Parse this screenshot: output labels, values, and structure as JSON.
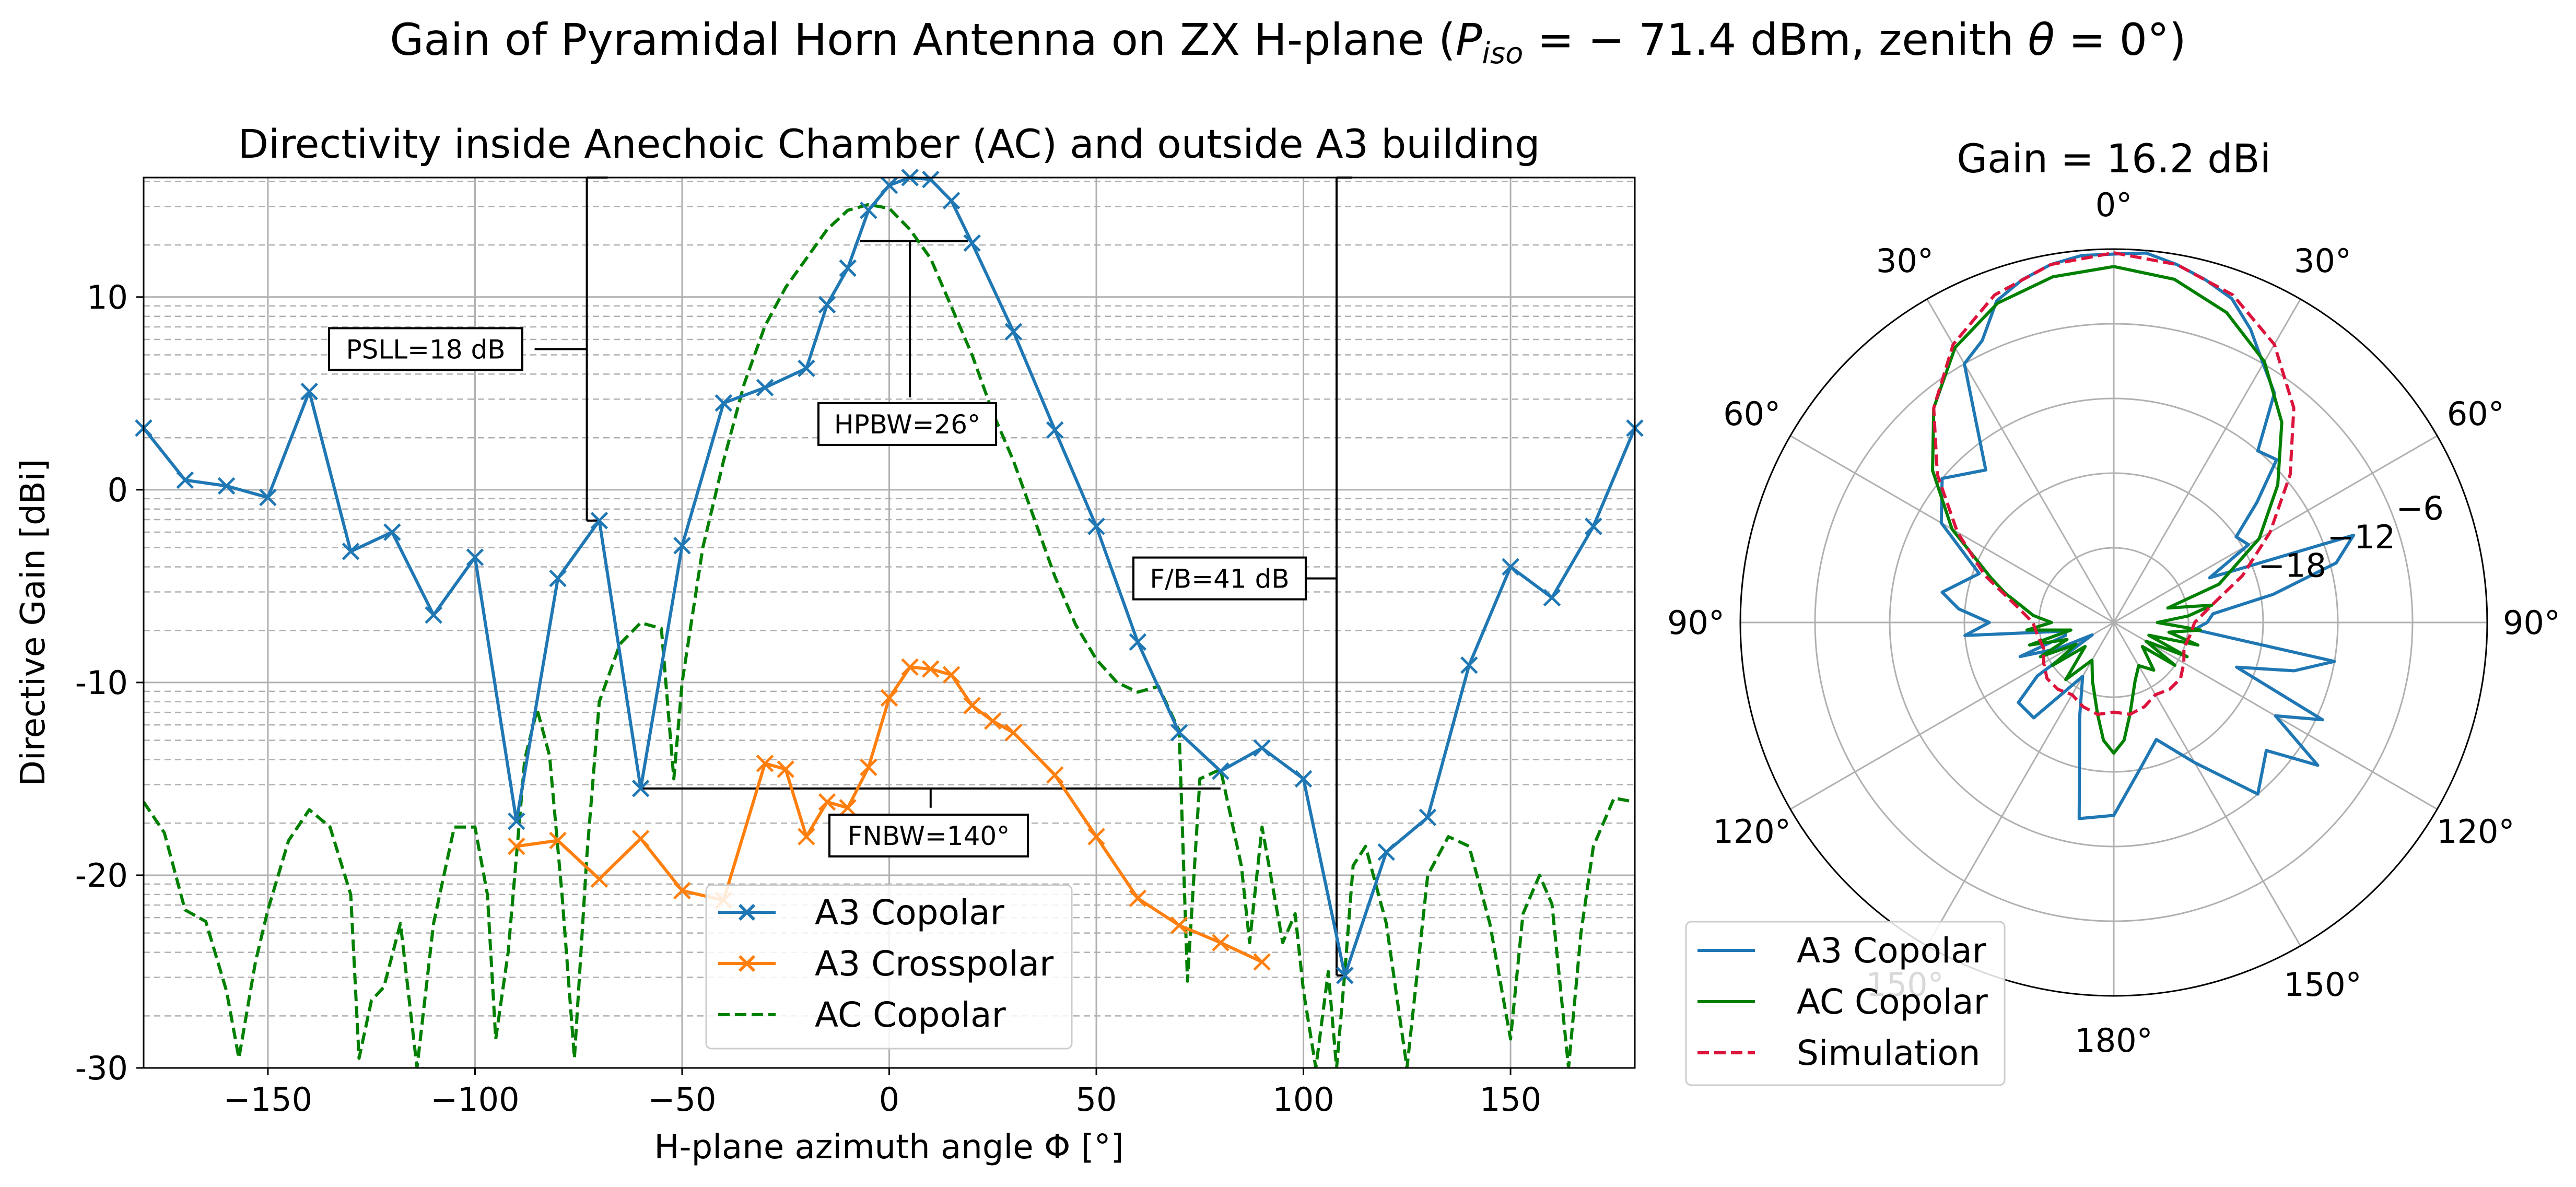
{
  "figure": {
    "title_prefix": "Gain of Pyramidal Horn Antenna on ZX H-plane (",
    "title_p": "P",
    "title_p_sub": "iso",
    "title_mid": " = − 71.4 dBm, zenith ",
    "title_theta": "θ",
    "title_suffix": " = 0°)"
  },
  "chart_data": [
    {
      "type": "line",
      "title": "Directivity inside Anechoic Chamber (AC) and outside A3 building",
      "xlabel": "H-plane azimuth angle Φ [°]",
      "ylabel": "Directive Gain [dBi]",
      "xlim": [
        -180,
        180
      ],
      "ylim": [
        -30,
        16.2
      ],
      "xticks": [
        -150,
        -100,
        -50,
        0,
        50,
        100,
        150
      ],
      "xtick_labels": [
        "−150",
        "−100",
        "−50",
        "0",
        "50",
        "100",
        "150"
      ],
      "yticks": [
        -30,
        -20,
        -10,
        0,
        10
      ],
      "ytick_labels": [
        "-30",
        "-20",
        "-10",
        "0",
        "10"
      ],
      "grid": true,
      "legend_position": "lower center",
      "series": [
        {
          "name": "A3 Copolar",
          "color": "#1f77b4",
          "style": "solid",
          "marker": "x",
          "x": [
            -180,
            -170,
            -160,
            -150,
            -140,
            -130,
            -120,
            -110,
            -100,
            -90,
            -80,
            -70,
            -60,
            -50,
            -40,
            -30,
            -20,
            -15,
            -10,
            -5,
            0,
            5,
            10,
            15,
            20,
            30,
            40,
            50,
            60,
            70,
            80,
            90,
            100,
            110,
            120,
            130,
            140,
            150,
            160,
            170,
            180
          ],
          "y": [
            3.2,
            0.5,
            0.2,
            -0.4,
            5.1,
            -3.2,
            -2.2,
            -6.5,
            -3.5,
            -17.2,
            -4.6,
            -1.6,
            -15.5,
            -2.9,
            4.5,
            5.3,
            6.3,
            9.6,
            11.5,
            14.5,
            15.8,
            16.2,
            16.1,
            15.0,
            12.8,
            8.2,
            3.1,
            -1.9,
            -7.9,
            -12.6,
            -14.6,
            -13.4,
            -15.0,
            -25.2,
            -18.8,
            -17.0,
            -9.1,
            -4.0,
            -5.6,
            -1.9,
            3.2
          ]
        },
        {
          "name": "A3 Crosspolar",
          "color": "#ff7f0e",
          "style": "solid",
          "marker": "x",
          "x": [
            -90,
            -80,
            -70,
            -60,
            -50,
            -40,
            -30,
            -25,
            -20,
            -15,
            -10,
            -5,
            0,
            5,
            10,
            15,
            20,
            25,
            30,
            40,
            50,
            60,
            70,
            80,
            90
          ],
          "y": [
            -18.5,
            -18.2,
            -20.2,
            -18.1,
            -20.8,
            -21.3,
            -14.2,
            -14.5,
            -18.0,
            -16.2,
            -16.5,
            -14.4,
            -10.8,
            -9.2,
            -9.3,
            -9.6,
            -11.2,
            -12.0,
            -12.6,
            -14.8,
            -18.0,
            -21.2,
            -22.6,
            -23.5,
            -24.5
          ]
        },
        {
          "name": "AC Copolar",
          "color": "#008000",
          "style": "dashed",
          "marker": "none",
          "x": [
            -180,
            -175,
            -170,
            -165,
            -160,
            -157,
            -153,
            -150,
            -145,
            -140,
            -135,
            -130,
            -128,
            -125,
            -122,
            -118,
            -114,
            -110,
            -105,
            -100,
            -97,
            -95,
            -92,
            -90,
            -88,
            -85,
            -82,
            -79,
            -76,
            -73,
            -70,
            -65,
            -60,
            -55,
            -52,
            -50,
            -45,
            -40,
            -35,
            -30,
            -25,
            -20,
            -15,
            -10,
            -5,
            0,
            5,
            10,
            15,
            20,
            25,
            30,
            35,
            40,
            45,
            50,
            55,
            60,
            65,
            70,
            72,
            75,
            80,
            85,
            87,
            90,
            95,
            98,
            100,
            103,
            106,
            108,
            110,
            112,
            115,
            120,
            125,
            130,
            135,
            140,
            145,
            150,
            153,
            157,
            160,
            164,
            167,
            170,
            175,
            180
          ],
          "y": [
            -16.2,
            -17.8,
            -21.8,
            -22.4,
            -26.0,
            -29.5,
            -24.5,
            -21.8,
            -18.2,
            -16.6,
            -17.5,
            -21.0,
            -29.5,
            -26.5,
            -25.8,
            -22.5,
            -30.0,
            -22.5,
            -17.5,
            -17.5,
            -21.0,
            -28.5,
            -24.0,
            -19.0,
            -14.0,
            -11.4,
            -13.8,
            -21.0,
            -29.5,
            -19.0,
            -11.0,
            -8.0,
            -6.9,
            -7.2,
            -15.0,
            -10.0,
            -3.0,
            1.5,
            5.5,
            8.5,
            10.5,
            12.0,
            13.5,
            14.5,
            14.8,
            14.6,
            13.5,
            12.0,
            9.5,
            7.0,
            4.0,
            1.5,
            -1.5,
            -4.5,
            -7.0,
            -8.8,
            -10.0,
            -10.5,
            -10.2,
            -12.5,
            -25.5,
            -15.0,
            -14.5,
            -19.5,
            -23.5,
            -17.5,
            -23.5,
            -22.0,
            -26.0,
            -30.0,
            -25.0,
            -30.0,
            -25.0,
            -19.5,
            -18.5,
            -22.5,
            -30.0,
            -20.0,
            -18.0,
            -18.5,
            -22.5,
            -28.5,
            -22.0,
            -20.0,
            -21.5,
            -30.0,
            -23.0,
            -18.5,
            -16.0,
            -16.2
          ]
        }
      ],
      "annotations": [
        {
          "label": "PSLL=18 dB",
          "y_top": 16.2,
          "y_bottom": -1.6
        },
        {
          "label": "HPBW=26°",
          "x_left": -7,
          "x_right": 19,
          "level": 12.9
        },
        {
          "label": "FNBW=140°",
          "x_left": -60,
          "x_right": 80,
          "level": -15.5
        },
        {
          "label": "F/B=41 dB",
          "y_top": 16.2,
          "y_bottom": -25.2
        }
      ]
    },
    {
      "type": "polar",
      "title": "Gain = 16.2 dBi",
      "theta_zero": "top",
      "theta_direction": "clockwise",
      "r_range_db": [
        -30,
        0
      ],
      "rtick_labels": [
        "−6",
        "−12",
        "−18"
      ],
      "angle_labels": [
        "0°",
        "30°",
        "60°",
        "90°",
        "120°",
        "150°",
        "180°",
        "150°",
        "120°",
        "90°",
        "60°",
        "30°"
      ],
      "legend_position": "lower left",
      "series": [
        {
          "name": "A3 Copolar",
          "color": "#1f77b4",
          "style": "solid",
          "angle": [
            0,
            5,
            10,
            15,
            20,
            25,
            30,
            35,
            40,
            45,
            50,
            55,
            60,
            65,
            70,
            75,
            80,
            85,
            90,
            95,
            100,
            105,
            110,
            115,
            120,
            125,
            130,
            140,
            150,
            160,
            170,
            180,
            190,
            200,
            210,
            220,
            230,
            235,
            240,
            245,
            250,
            255,
            260,
            265,
            270,
            275,
            280,
            290,
            300,
            310,
            320,
            330,
            335,
            340,
            345,
            350,
            355,
            360
          ],
          "r_db": [
            -0.4,
            -0.2,
            -0.8,
            -1.5,
            -2.3,
            -4.0,
            -6.0,
            -7.5,
            -12.0,
            -11.5,
            -15.0,
            -18.0,
            -17.5,
            -21.5,
            -9.5,
            -11.5,
            -17.0,
            -22.0,
            -22.5,
            -23.5,
            -12.0,
            -15.0,
            -19.5,
            -11.5,
            -15.0,
            -10.0,
            -14.0,
            -12.0,
            -17.0,
            -20.0,
            -18.0,
            -14.5,
            -14.0,
            -22.0,
            -25.0,
            -20.0,
            -20.0,
            -22.5,
            -28.0,
            -25.0,
            -22.0,
            -26.0,
            -26.0,
            -18.0,
            -20.0,
            -17.5,
            -16.0,
            -18.5,
            -14.0,
            -12.0,
            -14.0,
            -6.0,
            -5.0,
            -2.5,
            -1.5,
            -0.8,
            -0.4,
            -0.4
          ]
        },
        {
          "name": "AC Copolar",
          "color": "#008000",
          "style": "solid",
          "angle": [
            0,
            10,
            20,
            30,
            40,
            50,
            60,
            70,
            75,
            80,
            85,
            90,
            95,
            100,
            105,
            110,
            115,
            120,
            125,
            130,
            140,
            150,
            160,
            170,
            175,
            180,
            185,
            190,
            200,
            210,
            220,
            230,
            235,
            240,
            245,
            250,
            255,
            260,
            265,
            270,
            275,
            280,
            285,
            290,
            300,
            310,
            320,
            330,
            340,
            350,
            360
          ],
          "r_db": [
            -1.4,
            -2.0,
            -3.5,
            -5.8,
            -9.0,
            -12.8,
            -16.5,
            -21.0,
            -25.5,
            -22.0,
            -24.0,
            -26.5,
            -23.0,
            -25.5,
            -23.0,
            -27.0,
            -23.5,
            -27.0,
            -24.0,
            -27.0,
            -25.0,
            -26.0,
            -25.0,
            -22.5,
            -20.5,
            -19.5,
            -20.5,
            -22.5,
            -25.0,
            -26.5,
            -24.0,
            -27.0,
            -24.0,
            -26.5,
            -23.5,
            -26.0,
            -23.0,
            -26.5,
            -23.0,
            -25.0,
            -23.5,
            -22.5,
            -21.0,
            -19.5,
            -15.0,
            -11.0,
            -7.5,
            -4.5,
            -2.7,
            -1.8,
            -1.4
          ]
        },
        {
          "name": "Simulation",
          "color": "#dc143c",
          "style": "dashed",
          "angle": [
            0,
            10,
            20,
            30,
            40,
            50,
            60,
            70,
            80,
            90,
            100,
            110,
            120,
            130,
            140,
            150,
            160,
            170,
            180,
            190,
            200,
            210,
            220,
            230,
            240,
            250,
            260,
            270,
            280,
            290,
            300,
            310,
            320,
            330,
            340,
            350,
            360
          ],
          "r_db": [
            -0.3,
            -0.8,
            -2.0,
            -4.2,
            -7.5,
            -11.5,
            -15.5,
            -19.0,
            -22.0,
            -23.5,
            -23.8,
            -24.0,
            -23.5,
            -23.0,
            -23.0,
            -23.3,
            -22.8,
            -22.5,
            -22.8,
            -22.5,
            -22.8,
            -23.3,
            -23.0,
            -23.0,
            -23.5,
            -24.0,
            -23.8,
            -23.5,
            -22.0,
            -19.0,
            -15.5,
            -11.5,
            -7.5,
            -4.2,
            -2.0,
            -0.8,
            -0.3
          ]
        }
      ]
    }
  ]
}
